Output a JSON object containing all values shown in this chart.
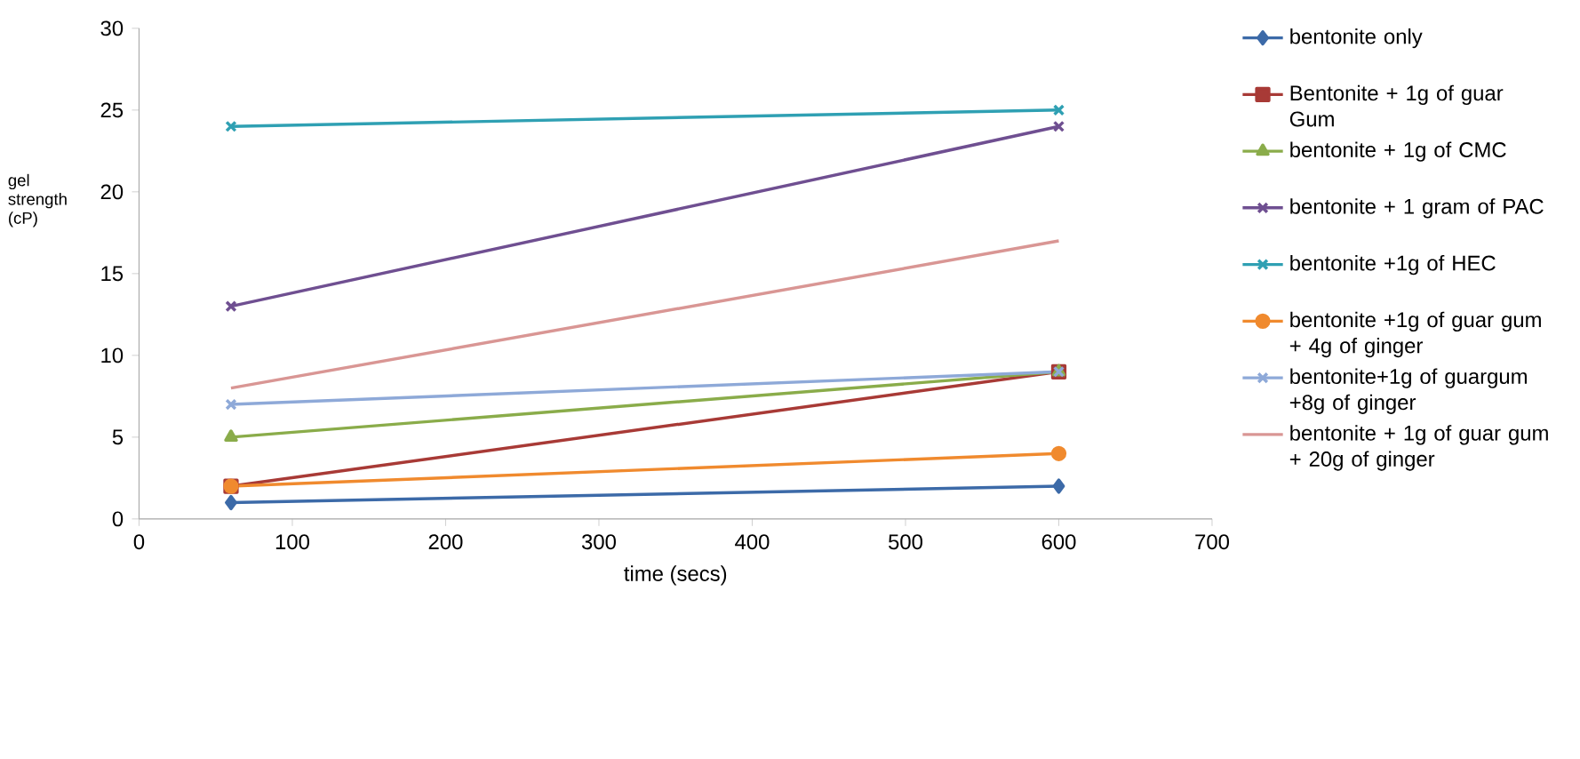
{
  "chart_data": {
    "type": "line",
    "xlabel": "time (secs)",
    "ylabel": "gel strength (cP)",
    "x": [
      60,
      600
    ],
    "xlim": [
      0,
      700
    ],
    "ylim": [
      0,
      30
    ],
    "xticks": [
      0,
      100,
      200,
      300,
      400,
      500,
      600,
      700
    ],
    "yticks": [
      0,
      5,
      10,
      15,
      20,
      25,
      30
    ],
    "legend": "right",
    "line_style": "solid",
    "series": [
      {
        "name": "bentonite only",
        "color": "#3c6aa8",
        "marker": "diamond",
        "values": [
          1,
          2
        ]
      },
      {
        "name": "Bentonite + 1g of guar Gum",
        "color": "#a83a36",
        "marker": "square",
        "values": [
          2,
          9
        ]
      },
      {
        "name": "bentonite + 1g of CMC",
        "color": "#8aac4a",
        "marker": "triangle",
        "values": [
          5,
          9
        ]
      },
      {
        "name": "bentonite + 1 gram of PAC",
        "color": "#6f4f91",
        "marker": "cross",
        "values": [
          13,
          24
        ]
      },
      {
        "name": "bentonite +1g of HEC",
        "color": "#2fa0b3",
        "marker": "cross",
        "values": [
          24,
          25
        ]
      },
      {
        "name": "bentonite +1g of guar gum + 4g of ginger",
        "color": "#f08a2e",
        "marker": "circle",
        "values": [
          2,
          4
        ]
      },
      {
        "name": "bentonite+1g of guargum +8g of ginger",
        "color": "#8ea9d8",
        "marker": "cross",
        "values": [
          7,
          9
        ]
      },
      {
        "name": "bentonite + 1g of guar gum + 20g of ginger",
        "color": "#d99694",
        "marker": "none",
        "values": [
          8,
          17
        ]
      }
    ]
  }
}
